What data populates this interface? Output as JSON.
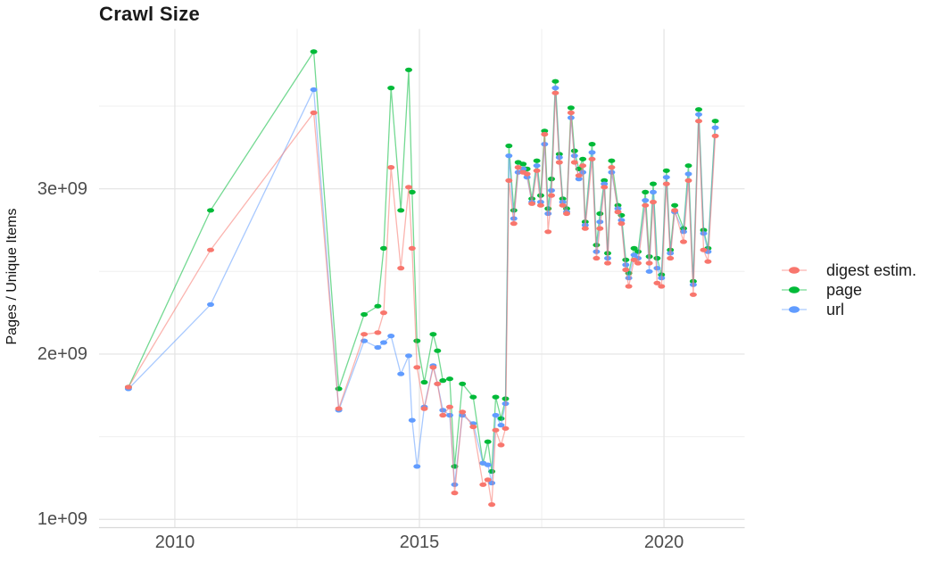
{
  "title": "Crawl Size",
  "chart_data": {
    "type": "line",
    "title": "Crawl Size",
    "xlabel": "",
    "ylabel": "Pages / Unique Items",
    "legend_position": "right",
    "grid": true,
    "x_unit": "year (crawl date, fractional years)",
    "y_unit": "items, billions (1e9)",
    "x_ticks": [
      "2010",
      "2015",
      "2020"
    ],
    "x_tick_values": [
      2010,
      2015,
      2020
    ],
    "x_minor_gridlines": [
      2012.5,
      2017.5
    ],
    "y_ticks": [
      "1e+09",
      "2e+09",
      "3e+09"
    ],
    "y_tick_values_e9": [
      1,
      2,
      3
    ],
    "y_minor_gridlines_e9": [
      1.5,
      2.5,
      3.5
    ],
    "xlim": [
      2008.45,
      2021.65
    ],
    "ylim_e9": [
      0.95,
      3.967
    ],
    "x": [
      2009.05,
      2010.73,
      2012.84,
      2013.35,
      2013.87,
      2014.15,
      2014.27,
      2014.42,
      2014.62,
      2014.78,
      2014.85,
      2014.95,
      2015.1,
      2015.28,
      2015.37,
      2015.48,
      2015.62,
      2015.72,
      2015.88,
      2016.1,
      2016.3,
      2016.4,
      2016.48,
      2016.56,
      2016.67,
      2016.76,
      2016.83,
      2016.93,
      2017.02,
      2017.12,
      2017.2,
      2017.3,
      2017.4,
      2017.48,
      2017.56,
      2017.63,
      2017.7,
      2017.78,
      2017.86,
      2017.93,
      2018.01,
      2018.1,
      2018.17,
      2018.26,
      2018.34,
      2018.39,
      2018.53,
      2018.62,
      2018.69,
      2018.78,
      2018.85,
      2018.93,
      2019.06,
      2019.13,
      2019.22,
      2019.28,
      2019.39,
      2019.47,
      2019.62,
      2019.7,
      2019.78,
      2019.86,
      2019.95,
      2020.05,
      2020.13,
      2020.22,
      2020.4,
      2020.5,
      2020.6,
      2020.71,
      2020.81,
      2020.9,
      2021.05
    ],
    "series": [
      {
        "name": "digest estim.",
        "color": "#F8766D",
        "values_e9": [
          1.8,
          2.63,
          3.46,
          1.67,
          2.12,
          2.13,
          2.25,
          3.13,
          2.52,
          3.01,
          2.64,
          1.92,
          1.67,
          1.92,
          1.82,
          1.63,
          1.68,
          1.16,
          1.65,
          1.56,
          1.21,
          1.24,
          1.09,
          1.54,
          1.45,
          1.55,
          3.05,
          2.79,
          3.13,
          3.1,
          3.09,
          2.91,
          3.11,
          2.9,
          3.33,
          2.74,
          2.96,
          3.58,
          3.16,
          2.9,
          2.85,
          3.46,
          3.16,
          3.08,
          3.14,
          2.76,
          3.18,
          2.58,
          2.76,
          3.01,
          2.55,
          3.13,
          2.86,
          2.79,
          2.51,
          2.41,
          2.57,
          2.55,
          2.9,
          2.55,
          2.92,
          2.43,
          2.41,
          3.03,
          2.58,
          2.87,
          2.68,
          3.05,
          2.36,
          3.41,
          2.63,
          2.56,
          3.32
        ]
      },
      {
        "name": "page",
        "color": "#00BA38",
        "values_e9": [
          1.8,
          2.87,
          3.83,
          1.79,
          2.24,
          2.29,
          2.64,
          3.61,
          2.87,
          3.72,
          2.98,
          2.08,
          1.83,
          2.12,
          2.02,
          1.84,
          1.85,
          1.32,
          1.82,
          1.74,
          1.34,
          1.47,
          1.29,
          1.74,
          1.61,
          1.73,
          3.26,
          2.87,
          3.16,
          3.15,
          3.12,
          2.94,
          3.17,
          2.96,
          3.35,
          2.88,
          3.06,
          3.65,
          3.21,
          2.94,
          2.88,
          3.49,
          3.23,
          3.12,
          3.18,
          2.8,
          3.27,
          2.66,
          2.85,
          3.05,
          2.61,
          3.17,
          2.9,
          2.84,
          2.57,
          2.49,
          2.64,
          2.62,
          2.98,
          2.59,
          3.03,
          2.58,
          2.48,
          3.11,
          2.63,
          2.9,
          2.76,
          3.14,
          2.44,
          3.48,
          2.75,
          2.64,
          3.41
        ]
      },
      {
        "name": "url",
        "color": "#619CFF",
        "values_e9": [
          1.79,
          2.3,
          3.6,
          1.66,
          2.08,
          2.04,
          2.07,
          2.11,
          1.88,
          1.99,
          1.6,
          1.32,
          1.68,
          1.93,
          1.82,
          1.66,
          1.63,
          1.21,
          1.63,
          1.58,
          1.34,
          1.33,
          1.22,
          1.63,
          1.57,
          1.7,
          3.2,
          2.82,
          3.1,
          3.12,
          3.07,
          2.92,
          3.14,
          2.92,
          3.27,
          2.85,
          2.99,
          3.61,
          3.19,
          2.92,
          2.86,
          3.43,
          3.2,
          3.06,
          3.1,
          2.78,
          3.22,
          2.62,
          2.8,
          3.03,
          2.58,
          3.1,
          2.88,
          2.81,
          2.54,
          2.46,
          2.6,
          2.58,
          2.93,
          2.5,
          2.98,
          2.52,
          2.46,
          3.07,
          2.61,
          2.86,
          2.74,
          3.09,
          2.42,
          3.45,
          2.73,
          2.62,
          3.37
        ]
      }
    ]
  }
}
